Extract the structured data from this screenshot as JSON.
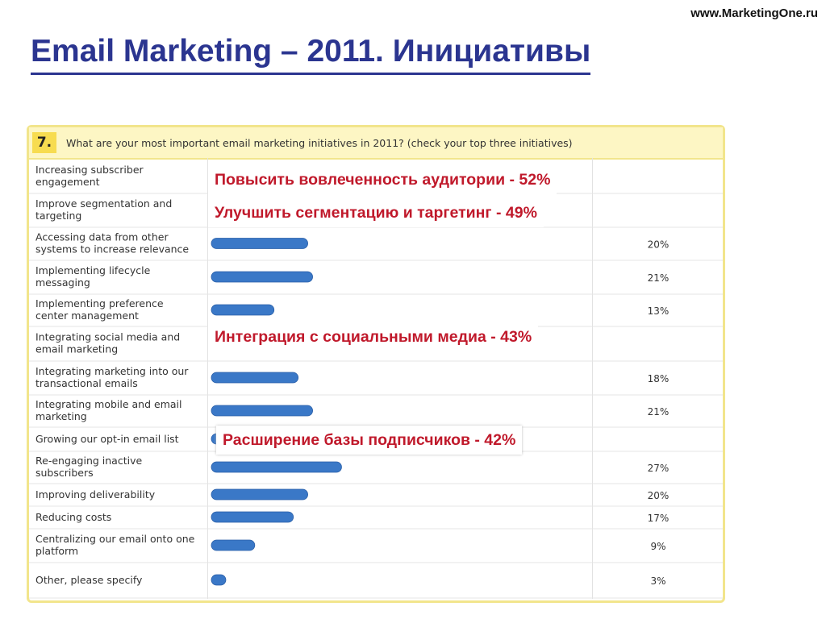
{
  "site": "www.MarketingOne.ru",
  "title": "Email Marketing – 2011. Инициативы",
  "question": {
    "number": "7.",
    "text": "What are your most important email marketing initiatives in 2011? (check your top three initiatives)"
  },
  "chart_data": {
    "type": "bar",
    "orientation": "horizontal",
    "bar_color": "#3a78c7",
    "categories": [
      [
        "Increasing subscriber",
        "engagement"
      ],
      [
        "Improve segmentation and",
        "targeting"
      ],
      [
        "Accessing data from other",
        "systems to increase relevance"
      ],
      [
        "Implementing lifecycle",
        "messaging"
      ],
      [
        "Implementing preference",
        "center management"
      ],
      [
        "Integrating social media and",
        "email marketing"
      ],
      [
        "Integrating marketing into our",
        "transactional emails"
      ],
      [
        "Integrating mobile and email",
        "marketing"
      ],
      [
        "Growing our opt-in email list"
      ],
      [
        "Re-engaging inactive",
        "subscribers"
      ],
      [
        "Improving deliverability"
      ],
      [
        "Reducing costs"
      ],
      [
        "Centralizing our email onto one",
        "platform"
      ],
      [
        "Other, please specify"
      ]
    ],
    "values": [
      52,
      49,
      20,
      21,
      13,
      43,
      18,
      21,
      42,
      27,
      20,
      17,
      9,
      3
    ],
    "value_labels": [
      "",
      "",
      "20%",
      "21%",
      "13%",
      "",
      "18%",
      "21%",
      "",
      "27%",
      "20%",
      "17%",
      "9%",
      "3%"
    ]
  },
  "callouts": {
    "engagement": "Повысить вовлеченность аудитории  -  52%",
    "segmentation": "Улучшить сегментацию и таргетинг  -  49%",
    "social": "Интеграция с социальными медиа  -  43%",
    "optin": "Расширение базы подписчиков  -  42%"
  }
}
